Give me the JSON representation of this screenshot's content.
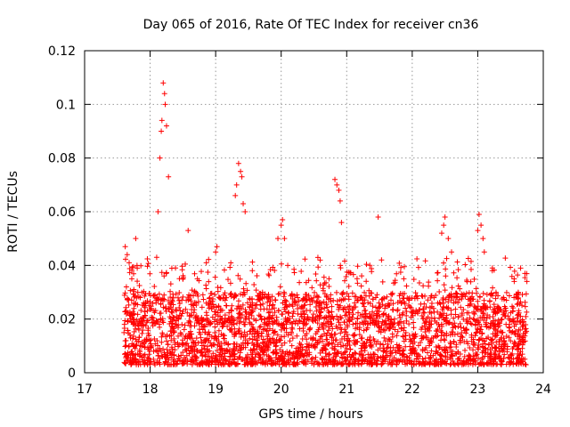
{
  "chart_data": {
    "type": "scatter",
    "title": "Day 065 of 2016, Rate Of TEC Index for receiver cn36",
    "xlabel": "GPS time / hours",
    "ylabel": "ROTI / TECUs",
    "xlim": [
      17,
      24
    ],
    "ylim": [
      0,
      0.12
    ],
    "xticks": [
      17,
      18,
      19,
      20,
      21,
      22,
      23,
      24
    ],
    "xtick_labels": [
      "17",
      "18",
      "19",
      "20",
      "21",
      "22",
      "23",
      "24"
    ],
    "yticks": [
      0,
      0.02,
      0.04,
      0.06,
      0.08,
      0.1,
      0.12
    ],
    "ytick_labels": [
      "0",
      "0.02",
      "0.04",
      "0.06",
      "0.08",
      "0.1",
      "0.12"
    ],
    "grid": true,
    "marker": "+",
    "color": "#ff0000",
    "series": [
      {
        "name": "ROTI",
        "x": [
          17.62,
          17.65,
          17.68,
          17.72,
          17.78,
          17.8,
          17.85,
          17.9,
          18.1,
          18.12,
          18.15,
          18.17,
          18.18,
          18.2,
          18.22,
          18.23,
          18.25,
          18.28,
          18.5,
          18.58,
          19.0,
          19.02,
          19.3,
          19.32,
          19.35,
          19.38,
          19.4,
          19.42,
          19.45,
          19.95,
          20.0,
          20.02,
          20.05,
          20.1,
          20.82,
          20.85,
          20.88,
          20.9,
          20.92,
          21.48,
          22.45,
          22.48,
          22.5,
          22.55,
          22.6,
          23.0,
          23.02,
          23.05,
          23.08,
          23.1,
          23.72,
          23.75
        ],
        "y": [
          0.047,
          0.044,
          0.041,
          0.035,
          0.05,
          0.04,
          0.028,
          0.026,
          0.043,
          0.06,
          0.08,
          0.09,
          0.094,
          0.108,
          0.104,
          0.1,
          0.092,
          0.073,
          0.035,
          0.053,
          0.045,
          0.047,
          0.066,
          0.07,
          0.078,
          0.075,
          0.073,
          0.063,
          0.06,
          0.05,
          0.055,
          0.057,
          0.05,
          0.04,
          0.072,
          0.07,
          0.068,
          0.064,
          0.056,
          0.058,
          0.052,
          0.055,
          0.058,
          0.05,
          0.045,
          0.053,
          0.059,
          0.055,
          0.05,
          0.045,
          0.037,
          0.034
        ]
      }
    ],
    "dense_band": {
      "description": "dense background cloud of points",
      "x_range": [
        17.6,
        23.75
      ],
      "y_range": [
        0.003,
        0.03
      ]
    }
  }
}
